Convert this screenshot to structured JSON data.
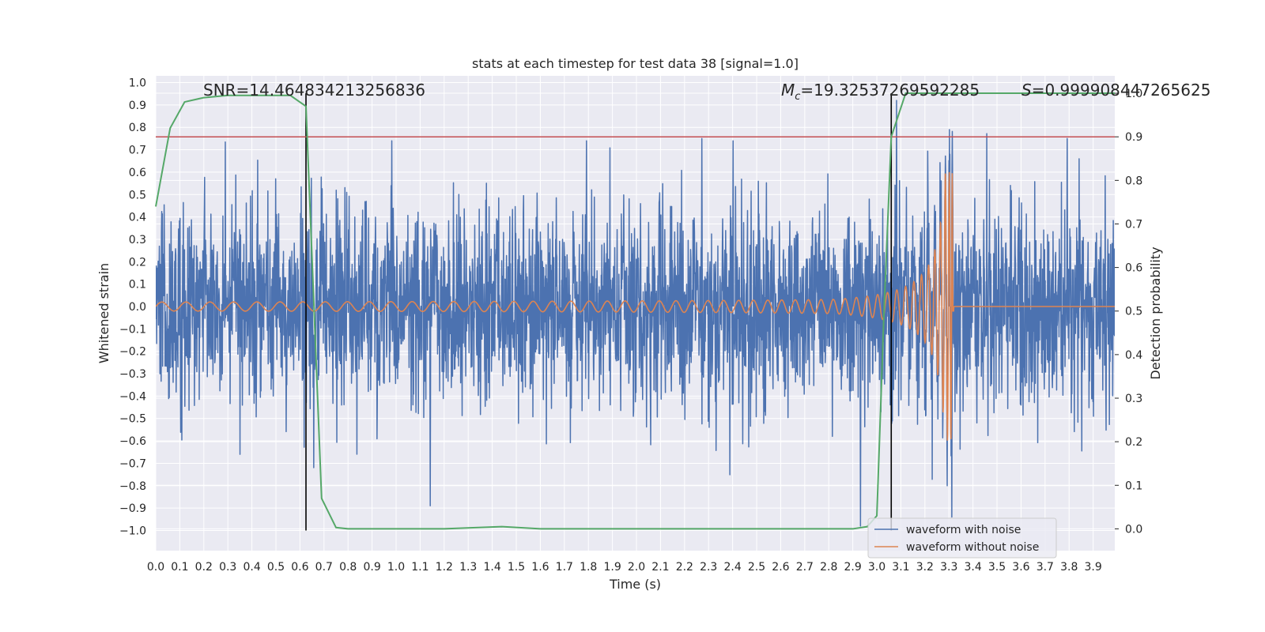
{
  "chart_data": {
    "type": "line",
    "title": "stats at each timestep for test data 38 [signal=1.0]",
    "xlabel": "Time (s)",
    "ylabel": "Whitened strain",
    "y2label": "Detection probability",
    "xlim": [
      0.0,
      3.99
    ],
    "ylim": [
      -1.09,
      1.03
    ],
    "y2lim": [
      -0.05,
      1.04
    ],
    "xticks": [
      "0.0",
      "0.1",
      "0.2",
      "0.3",
      "0.4",
      "0.5",
      "0.6",
      "0.7",
      "0.8",
      "0.9",
      "1.0",
      "1.1",
      "1.2",
      "1.3",
      "1.4",
      "1.5",
      "1.6",
      "1.7",
      "1.8",
      "1.9",
      "2.0",
      "2.1",
      "2.2",
      "2.3",
      "2.4",
      "2.5",
      "2.6",
      "2.7",
      "2.8",
      "2.9",
      "3.0",
      "3.1",
      "3.2",
      "3.3",
      "3.4",
      "3.5",
      "3.6",
      "3.7",
      "3.8",
      "3.9"
    ],
    "yticks": [
      "1.0",
      "0.9",
      "0.8",
      "0.7",
      "0.6",
      "0.5",
      "0.4",
      "0.3",
      "0.2",
      "0.1",
      "0.0",
      "−0.1",
      "−0.2",
      "−0.3",
      "−0.4",
      "−0.5",
      "−0.6",
      "−0.7",
      "−0.8",
      "−0.9",
      "−1.0"
    ],
    "y2ticks": [
      "0.0",
      "0.1",
      "0.2",
      "0.3",
      "0.4",
      "0.5",
      "0.6",
      "0.7",
      "0.8",
      "0.9",
      "1.0"
    ],
    "annotations": {
      "snr": "SNR=14.464834213256836",
      "mc_symbol": "M",
      "mc_sub": "c",
      "mc_value": "=19.32537269592285",
      "s_symbol": "S",
      "s_value": "=0.999908447265625"
    },
    "vlines": [
      0.625,
      3.06
    ],
    "threshold_y2": 0.9,
    "series": [
      {
        "name": "waveform with noise",
        "color": "#4c72b0",
        "axis": "left",
        "style": "noise",
        "std": 0.22,
        "peaks": [
          0.92,
          -0.98,
          0.79,
          -0.94,
          0.74,
          0.74,
          0.74,
          -0.89,
          0.75,
          0.75
        ]
      },
      {
        "name": "waveform without noise",
        "color": "#dd8452",
        "axis": "left",
        "style": "chirp",
        "merger_time": 3.32,
        "peak_amplitude": 0.6,
        "min_amplitude": -0.6,
        "start_amplitude": 0.02
      },
      {
        "name": "detection probability",
        "color": "#55a868",
        "axis": "right",
        "x": [
          0.0,
          0.06,
          0.12,
          0.2,
          0.3,
          0.4,
          0.5,
          0.56,
          0.625,
          0.69,
          0.75,
          0.8,
          1.2,
          1.44,
          1.6,
          2.0,
          2.5,
          2.9,
          2.96,
          3.0,
          3.03,
          3.06,
          3.12,
          3.99
        ],
        "y": [
          0.74,
          0.92,
          0.98,
          0.99,
          0.995,
          0.995,
          0.995,
          0.995,
          0.97,
          0.07,
          0.003,
          0.0,
          0.0,
          0.005,
          0.0,
          0.0,
          0.0,
          0.0,
          0.005,
          0.03,
          0.5,
          0.9,
          1.0,
          1.0
        ]
      },
      {
        "name": "threshold",
        "color": "#c44e52",
        "axis": "right",
        "value": 0.9
      }
    ],
    "legend": {
      "position": "lower-right",
      "entries": [
        "waveform with noise",
        "waveform without noise"
      ]
    }
  }
}
